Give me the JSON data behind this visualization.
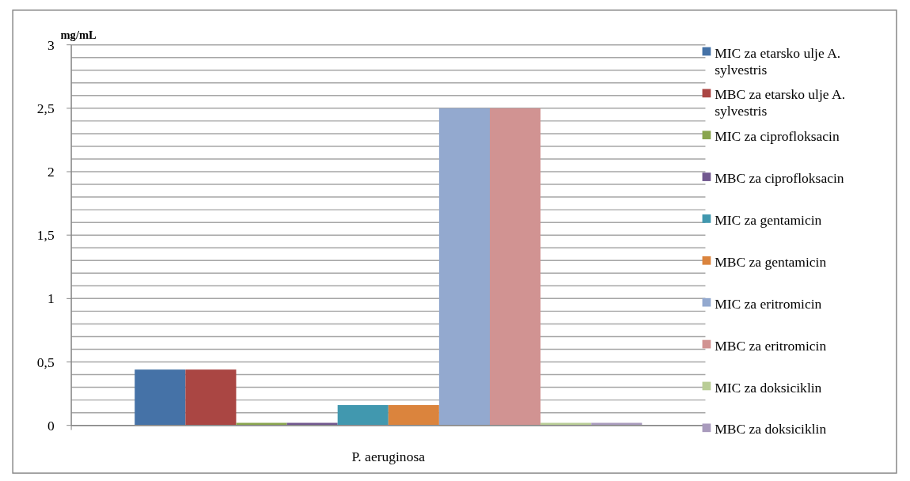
{
  "chart_data": {
    "type": "bar",
    "ylabel": "mg/mL",
    "categories": [
      "P. aeruginosa"
    ],
    "series": [
      {
        "name": "MIC za etarsko ulje A. sylvestris",
        "color": "#4572a7",
        "values": [
          0.44
        ]
      },
      {
        "name": "MBC za etarsko ulje A. sylvestris",
        "color": "#aa4643",
        "values": [
          0.44
        ]
      },
      {
        "name": "MIC za ciprofloksacin",
        "color": "#89a54e",
        "values": [
          0.02
        ]
      },
      {
        "name": "MBC za ciprofloksacin",
        "color": "#71588f",
        "values": [
          0.02
        ]
      },
      {
        "name": "MIC za gentamicin",
        "color": "#4198af",
        "values": [
          0.16
        ]
      },
      {
        "name": "MBC za gentamicin",
        "color": "#db843d",
        "values": [
          0.16
        ]
      },
      {
        "name": "MIC za eritromicin",
        "color": "#93a9cf",
        "values": [
          2.5
        ]
      },
      {
        "name": "MBC za eritromicin",
        "color": "#d19392",
        "values": [
          2.5
        ]
      },
      {
        "name": "MIC za doksiciklin",
        "color": "#b9cd96",
        "values": [
          0.02
        ]
      },
      {
        "name": "MBC za doksiciklin",
        "color": "#a99bbd",
        "values": [
          0.02
        ]
      }
    ],
    "ylim": [
      0,
      3
    ],
    "yticks": [
      0,
      {
        "value": 0.1,
        "label": null
      },
      {
        "value": 0.2,
        "label": null
      },
      {
        "value": 0.3,
        "label": null
      },
      {
        "value": 0.4,
        "label": null
      },
      {
        "value": 0.5,
        "label": "0,5"
      },
      {
        "value": 0.6,
        "label": null
      },
      {
        "value": 0.7,
        "label": null
      },
      {
        "value": 0.8,
        "label": null
      },
      {
        "value": 0.9,
        "label": null
      },
      1,
      {
        "value": 1.1,
        "label": null
      },
      {
        "value": 1.2,
        "label": null
      },
      {
        "value": 1.3,
        "label": null
      },
      {
        "value": 1.4,
        "label": null
      },
      {
        "value": 1.5,
        "label": "1,5"
      },
      {
        "value": 1.6,
        "label": null
      },
      {
        "value": 1.7,
        "label": null
      },
      {
        "value": 1.8,
        "label": null
      },
      {
        "value": 1.9,
        "label": null
      },
      2,
      {
        "value": 2.1,
        "label": null
      },
      {
        "value": 2.2,
        "label": null
      },
      {
        "value": 2.3,
        "label": null
      },
      {
        "value": 2.4,
        "label": null
      },
      {
        "value": 2.5,
        "label": "2,5"
      },
      {
        "value": 2.6,
        "label": null
      },
      {
        "value": 2.7,
        "label": null
      },
      {
        "value": 2.8,
        "label": null
      },
      {
        "value": 2.9,
        "label": null
      },
      3
    ],
    "grid": true,
    "legend": "right"
  }
}
